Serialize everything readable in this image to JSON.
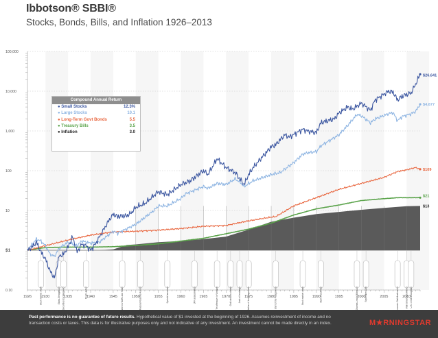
{
  "header": {
    "brand": "Ibbotson® SBBI®",
    "subtitle": "Stocks, Bonds, Bills, and Inflation 1926–2013"
  },
  "legend": {
    "title": "Compound Annual Return",
    "rows": [
      {
        "label": "Small Stocks",
        "value": "12.3%",
        "color": "#3b56a0"
      },
      {
        "label": "Large Stocks",
        "value": "10.1",
        "color": "#8db4e2"
      },
      {
        "label": "Long-Term Govt Bonds",
        "value": "5.5",
        "color": "#e8643c"
      },
      {
        "label": "Treasury Bills",
        "value": "3.5",
        "color": "#5aa34a"
      },
      {
        "label": "Inflation",
        "value": "3.0",
        "color": "#4d4d4d"
      }
    ]
  },
  "footer": {
    "bold": "Past performance is no guarantee of future results.",
    "text": "Hypothetical value of $1 invested at the beginning of 1926. Assumes reinvestment of income and no transaction costs or taxes. This data is for illustrative purposes only and not indicative of any investment. An investment cannot be made directly in an index.",
    "logo": "M★RNINGSTAR"
  },
  "chart_data": {
    "type": "line",
    "title": "Stocks, Bonds, Bills, and Inflation 1926–2013",
    "yscale": "log",
    "ylim": [
      0.1,
      100000
    ],
    "xlim": [
      1926,
      2013
    ],
    "yticks": [
      {
        "value": 100000,
        "label": "100,000"
      },
      {
        "value": 10000,
        "label": "10,000"
      },
      {
        "value": 1000,
        "label": "1,000"
      },
      {
        "value": 100,
        "label": "100"
      },
      {
        "value": 10,
        "label": "10"
      },
      {
        "value": 1,
        "label": "$1"
      },
      {
        "value": 0.1,
        "label": "0.10"
      }
    ],
    "xticks": [
      1926,
      1930,
      1935,
      1940,
      1945,
      1950,
      1955,
      1960,
      1965,
      1970,
      1975,
      1980,
      1985,
      1990,
      1995,
      2000,
      2005,
      2010
    ],
    "series": [
      {
        "name": "Small Stocks",
        "color": "#3b56a0",
        "end_label": "$26,641",
        "x": [
          1926,
          1927,
          1928,
          1929,
          1930,
          1931,
          1932,
          1933,
          1934,
          1935,
          1936,
          1937,
          1938,
          1939,
          1940,
          1941,
          1942,
          1943,
          1944,
          1945,
          1946,
          1947,
          1948,
          1949,
          1950,
          1952,
          1955,
          1957,
          1960,
          1962,
          1965,
          1966,
          1968,
          1970,
          1972,
          1974,
          1975,
          1976,
          1978,
          1980,
          1981,
          1983,
          1984,
          1987,
          1988,
          1990,
          1991,
          1994,
          1995,
          1997,
          1998,
          2000,
          2002,
          2003,
          2006,
          2007,
          2008,
          2009,
          2011,
          2012,
          2013
        ],
        "y": [
          1.0,
          1.2,
          1.6,
          0.9,
          0.6,
          0.3,
          0.2,
          0.7,
          0.8,
          1.2,
          2.2,
          0.9,
          1.4,
          1.3,
          1.0,
          1.4,
          2.2,
          3.5,
          5.5,
          8.0,
          7.0,
          7.3,
          7.3,
          8.7,
          12,
          15,
          30,
          25,
          45,
          55,
          100,
          80,
          200,
          120,
          90,
          45,
          80,
          120,
          220,
          400,
          450,
          800,
          700,
          1100,
          1000,
          900,
          1600,
          2000,
          2800,
          4000,
          3500,
          5000,
          3300,
          6000,
          10000,
          9500,
          6000,
          7500,
          9000,
          15000,
          26641
        ]
      },
      {
        "name": "Large Stocks",
        "color": "#8db4e2",
        "end_label": "$4,677",
        "x": [
          1926,
          1927,
          1928,
          1929,
          1930,
          1931,
          1932,
          1933,
          1935,
          1937,
          1938,
          1940,
          1942,
          1943,
          1945,
          1946,
          1950,
          1954,
          1955,
          1957,
          1960,
          1961,
          1965,
          1966,
          1968,
          1970,
          1972,
          1973,
          1974,
          1976,
          1980,
          1982,
          1985,
          1987,
          1988,
          1990,
          1991,
          1995,
          1997,
          1999,
          2000,
          2002,
          2003,
          2006,
          2007,
          2008,
          2009,
          2011,
          2012,
          2013
        ],
        "y": [
          1.0,
          1.4,
          1.9,
          1.7,
          1.3,
          0.8,
          0.7,
          1.1,
          1.6,
          1.3,
          1.7,
          1.5,
          1.6,
          2.0,
          3.0,
          2.7,
          4.5,
          10,
          13,
          13,
          20,
          26,
          40,
          36,
          48,
          45,
          62,
          53,
          40,
          56,
          80,
          90,
          160,
          260,
          280,
          300,
          420,
          800,
          1400,
          2600,
          2400,
          1600,
          2000,
          2700,
          2900,
          1800,
          2300,
          2700,
          3100,
          4677
        ]
      },
      {
        "name": "Long-Term Govt Bonds",
        "color": "#e8643c",
        "end_label": "$109",
        "x": [
          1926,
          1930,
          1935,
          1940,
          1945,
          1950,
          1955,
          1960,
          1965,
          1970,
          1975,
          1980,
          1981,
          1985,
          1990,
          1995,
          2000,
          2005,
          2008,
          2010,
          2012,
          2013
        ],
        "y": [
          1.0,
          1.3,
          1.8,
          2.4,
          2.9,
          3.0,
          3.2,
          3.5,
          4.0,
          4.2,
          5.5,
          6.8,
          7.0,
          13,
          21,
          34,
          48,
          68,
          95,
          105,
          120,
          109
        ]
      },
      {
        "name": "Treasury Bills",
        "color": "#5aa34a",
        "end_label": "$21",
        "x": [
          1926,
          1930,
          1935,
          1940,
          1945,
          1950,
          1955,
          1960,
          1965,
          1970,
          1975,
          1980,
          1985,
          1990,
          1995,
          2000,
          2005,
          2008,
          2010,
          2013
        ],
        "y": [
          1.0,
          1.17,
          1.2,
          1.2,
          1.23,
          1.32,
          1.45,
          1.7,
          2.0,
          2.6,
          3.4,
          4.8,
          7.7,
          11.0,
          13.7,
          17.8,
          19.8,
          21.0,
          21.0,
          21.0
        ]
      },
      {
        "name": "Inflation",
        "color": "#4d4d4d",
        "end_label": "$13",
        "x": [
          1926,
          1930,
          1933,
          1935,
          1940,
          1942,
          1945,
          1948,
          1950,
          1955,
          1960,
          1965,
          1970,
          1975,
          1980,
          1985,
          1990,
          1995,
          2000,
          2005,
          2010,
          2013
        ],
        "y": [
          1.0,
          0.9,
          0.75,
          0.8,
          0.8,
          0.9,
          1.05,
          1.35,
          1.4,
          1.6,
          1.7,
          1.9,
          2.2,
          3.3,
          5.2,
          6.6,
          8.1,
          9.2,
          10.4,
          11.6,
          12.8,
          13.0
        ]
      }
    ],
    "events": [
      {
        "year": 1929,
        "label": "Stock market crash"
      },
      {
        "year": 1933,
        "label": "Glass-Steagall Act"
      },
      {
        "year": 1934,
        "label": "Securities Exchange Act"
      },
      {
        "year": 1939,
        "label": "Pearl Harbor"
      },
      {
        "year": 1947,
        "label": "General Agreement on Tariffs and Trade"
      },
      {
        "year": 1951,
        "label": "U.S. Treasury-Federal Reserve Accord"
      },
      {
        "year": 1957,
        "label": "Sputnik launched"
      },
      {
        "year": 1963,
        "label": "JFK assassinated"
      },
      {
        "year": 1968,
        "label": "Tet offensive in Vietnam"
      },
      {
        "year": 1971,
        "label": "Gold window closed"
      },
      {
        "year": 1973,
        "label": "Arab oil embargo"
      },
      {
        "year": 1975,
        "label": "May Day, the deregulation of brokerage fees"
      },
      {
        "year": 1981,
        "label": "Start of the Reagan era"
      },
      {
        "year": 1987,
        "label": "Stock market crash"
      },
      {
        "year": 1991,
        "label": "Start of Gulf War"
      },
      {
        "year": 1999,
        "label": "Gramm-Leach-Bliley Act"
      },
      {
        "year": 2001,
        "label": "September 11th"
      },
      {
        "year": 2008,
        "label": "Emergency Economic Stabilization Act"
      },
      {
        "year": 2010,
        "label": "Wall Street Reform Act"
      },
      {
        "year": 2011,
        "label": "U.S. credit downgrade"
      }
    ]
  }
}
